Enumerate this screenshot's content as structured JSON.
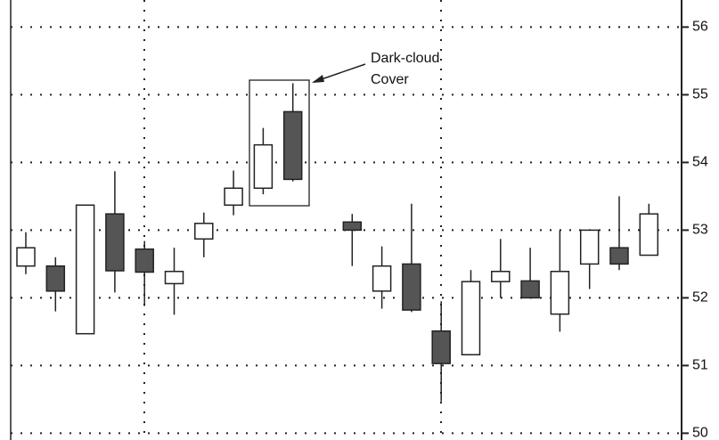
{
  "chart_data": {
    "type": "candlestick",
    "annotation": [
      "Dark-cloud",
      "Cover"
    ],
    "up_color": "#ffffff",
    "down_color": "#555555",
    "series": {
      "open": [
        52.47,
        52.47,
        51.47,
        53.24,
        52.72,
        52.21,
        52.87,
        53.37,
        53.62,
        54.75,
        null,
        53.12,
        52.1,
        52.5,
        51.51,
        51.16,
        52.24,
        52.25,
        51.76,
        52.5,
        52.74,
        52.63
      ],
      "high": [
        52.97,
        52.6,
        53.37,
        53.87,
        52.84,
        52.74,
        53.26,
        53.88,
        54.51,
        55.17,
        null,
        53.24,
        52.76,
        53.39,
        51.95,
        52.41,
        52.87,
        52.74,
        53.0,
        53.0,
        53.5,
        53.39
      ],
      "low": [
        52.35,
        51.8,
        51.47,
        52.08,
        51.88,
        51.75,
        52.6,
        53.22,
        53.53,
        53.72,
        null,
        52.47,
        51.84,
        51.79,
        50.47,
        51.16,
        52.0,
        52.0,
        51.5,
        52.13,
        52.41,
        52.63
      ],
      "close": [
        52.74,
        52.1,
        53.37,
        52.4,
        52.38,
        52.39,
        53.1,
        53.62,
        54.26,
        53.75,
        null,
        53.0,
        52.47,
        51.82,
        51.03,
        52.24,
        52.39,
        52.0,
        52.39,
        53.0,
        52.5,
        53.24
      ]
    },
    "ylim": [
      49.9,
      56.4
    ],
    "yticks": [
      50,
      51,
      52,
      53,
      54,
      55,
      56
    ],
    "grid": true
  }
}
